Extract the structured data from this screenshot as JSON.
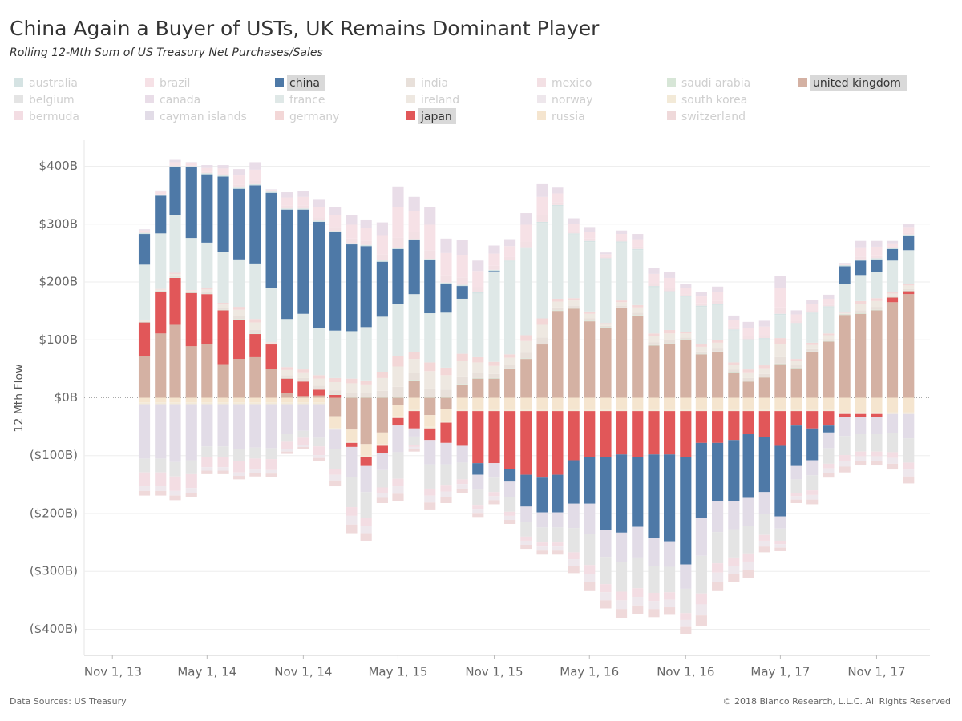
{
  "chart_data": {
    "type": "bar",
    "stacked": true,
    "title": "China Again a Buyer of USTs, UK Remains Dominant Player",
    "subtitle": "Rolling 12-Mth Sum of US Treasury Net Purchases/Sales",
    "y_label": "12 Mth Flow",
    "source": "Data Sources: US Treasury",
    "copyright": "© 2018 Bianco Research, L.L.C. All Rights Reserved",
    "x": [
      "2014-01-01",
      "2014-02-01",
      "2014-03-01",
      "2014-04-01",
      "2014-05-01",
      "2014-06-01",
      "2014-07-01",
      "2014-08-01",
      "2014-09-01",
      "2014-10-01",
      "2014-11-01",
      "2014-12-01",
      "2015-01-01",
      "2015-02-01",
      "2015-03-01",
      "2015-04-01",
      "2015-05-01",
      "2015-06-01",
      "2015-07-01",
      "2015-08-01",
      "2015-09-01",
      "2015-10-01",
      "2015-11-01",
      "2015-12-01",
      "2016-01-01",
      "2016-02-01",
      "2016-03-01",
      "2016-04-01",
      "2016-05-01",
      "2016-06-01",
      "2016-07-01",
      "2016-08-01",
      "2016-09-01",
      "2016-10-01",
      "2016-11-01",
      "2016-12-01",
      "2017-01-01",
      "2017-02-01",
      "2017-03-01",
      "2017-04-01",
      "2017-05-01",
      "2017-06-01",
      "2017-07-01",
      "2017-08-01",
      "2017-09-01",
      "2017-10-01",
      "2017-11-01",
      "2017-12-01",
      "2018-01-01"
    ],
    "xlim": [
      "2013-09-08",
      "2018-02-11"
    ],
    "xticks": [
      {
        "value": "2013-11-01",
        "label": "Nov 1, 13"
      },
      {
        "value": "2014-05-01",
        "label": "May 1, 14"
      },
      {
        "value": "2014-11-01",
        "label": "Nov 1, 14"
      },
      {
        "value": "2015-05-01",
        "label": "May 1, 15"
      },
      {
        "value": "2015-11-01",
        "label": "Nov 1, 15"
      },
      {
        "value": "2016-05-01",
        "label": "May 1, 16"
      },
      {
        "value": "2016-11-01",
        "label": "Nov 1, 16"
      },
      {
        "value": "2017-05-01",
        "label": "May 1, 17"
      },
      {
        "value": "2017-11-01",
        "label": "Nov 1, 17"
      }
    ],
    "ylim": [
      -445,
      445
    ],
    "yticks": [
      {
        "value": -400,
        "label": "($400B)"
      },
      {
        "value": -300,
        "label": "($300B)"
      },
      {
        "value": -200,
        "label": "($200B)"
      },
      {
        "value": -100,
        "label": "($100B)"
      },
      {
        "value": 0,
        "label": "$0B"
      },
      {
        "value": 100,
        "label": "$100B"
      },
      {
        "value": 200,
        "label": "$200B"
      },
      {
        "value": 300,
        "label": "$300B"
      },
      {
        "value": 400,
        "label": "$400B"
      }
    ],
    "grid": true,
    "stack_order": [
      18,
      14,
      16,
      11,
      15,
      9,
      10,
      8,
      7,
      6,
      0,
      12,
      3,
      4,
      5,
      1,
      2,
      13,
      17
    ],
    "series": [
      {
        "name": "australia",
        "color": "#d5e3e3",
        "highlighted": false,
        "values": [
          2,
          2,
          2,
          2,
          2,
          2,
          2,
          2,
          2,
          2,
          2,
          2,
          2,
          2,
          2,
          2,
          2,
          2,
          2,
          2,
          2,
          2,
          2,
          2,
          2,
          2,
          2,
          2,
          2,
          2,
          2,
          2,
          2,
          2,
          2,
          2,
          2,
          2,
          2,
          2,
          2,
          2,
          2,
          2,
          2,
          2,
          2,
          2,
          2
        ]
      },
      {
        "name": "belgium",
        "color": "#e4e4e4",
        "highlighted": false,
        "values": [
          -24,
          -24,
          -25,
          -24,
          -18,
          -18,
          -20,
          -19,
          -19,
          -13,
          -12,
          -15,
          -34,
          -52,
          -45,
          -30,
          -46,
          -14,
          -42,
          -37,
          -29,
          -26,
          -25,
          -26,
          -26,
          -26,
          -26,
          -42,
          -53,
          -47,
          -51,
          -53,
          -47,
          -44,
          -42,
          -65,
          -54,
          -49,
          -48,
          -37,
          -21,
          -23,
          -26,
          -27,
          -33,
          -30,
          -30,
          -33,
          -42
        ]
      },
      {
        "name": "bermuda",
        "color": "#f3dde3",
        "highlighted": false,
        "values": [
          -24,
          -24,
          -25,
          -24,
          -18,
          -18,
          -20,
          -19,
          -19,
          -13,
          -12,
          -15,
          -10,
          -15,
          -13,
          -9,
          -13,
          -4,
          -12,
          -10,
          -8,
          -7,
          -7,
          -7,
          -7,
          -7,
          -7,
          -12,
          -15,
          -14,
          -15,
          -15,
          -14,
          -13,
          -12,
          -19,
          -16,
          -14,
          -14,
          -10,
          -6,
          -6,
          -8,
          -8,
          -10,
          -8,
          -8,
          -10,
          -12
        ]
      },
      {
        "name": "brazil",
        "color": "#f6e1e6",
        "highlighted": false,
        "values": [
          3,
          4,
          5,
          4,
          7,
          9,
          16,
          19,
          2,
          14,
          15,
          18,
          20,
          24,
          22,
          33,
          53,
          37,
          44,
          38,
          39,
          28,
          21,
          19,
          29,
          32,
          15,
          13,
          12,
          5,
          10,
          13,
          16,
          17,
          10,
          12,
          15,
          12,
          15,
          15,
          33,
          11,
          11,
          10,
          2,
          16,
          15,
          6,
          10
        ]
      },
      {
        "name": "canada",
        "color": "#e9dde8",
        "highlighted": false,
        "values": [
          2,
          2,
          4,
          2,
          5,
          6,
          11,
          13,
          1,
          9,
          10,
          12,
          14,
          16,
          15,
          22,
          35,
          24,
          30,
          25,
          26,
          18,
          14,
          12,
          20,
          22,
          10,
          9,
          8,
          3,
          6,
          9,
          10,
          11,
          7,
          8,
          10,
          8,
          10,
          10,
          22,
          7,
          7,
          7,
          1,
          11,
          10,
          4,
          6
        ]
      },
      {
        "name": "cayman islands",
        "color": "#e2dce7",
        "highlighted": false,
        "values": [
          -94,
          -94,
          -100,
          -97,
          -73,
          -73,
          -78,
          -75,
          -76,
          -52,
          -46,
          -58,
          -34,
          -52,
          -45,
          -30,
          -46,
          -14,
          -42,
          -37,
          -29,
          -26,
          -25,
          -26,
          -26,
          -26,
          -26,
          -42,
          -53,
          -47,
          -51,
          -53,
          -47,
          -44,
          -42,
          -65,
          -54,
          -49,
          -48,
          -37,
          -21,
          -23,
          -26,
          -27,
          -33,
          -30,
          -30,
          -33,
          -42
        ]
      },
      {
        "name": "china",
        "color": "#4e79a7",
        "highlighted": true,
        "values": [
          53,
          65,
          83,
          122,
          118,
          130,
          122,
          135,
          165,
          189,
          180,
          183,
          170,
          150,
          140,
          95,
          95,
          93,
          92,
          50,
          22,
          -20,
          2,
          -22,
          -55,
          -60,
          -65,
          -75,
          -80,
          -125,
          -135,
          -120,
          -145,
          -150,
          -185,
          -130,
          -100,
          -105,
          -110,
          -95,
          -122,
          -70,
          -55,
          -12,
          30,
          25,
          22,
          20,
          25
        ]
      },
      {
        "name": "france",
        "color": "#dfe8e7",
        "highlighted": false,
        "values": [
          95,
          96,
          99,
          90,
          79,
          88,
          82,
          96,
          93,
          83,
          96,
          82,
          82,
          82,
          92,
          95,
          90,
          100,
          85,
          95,
          95,
          110,
          155,
          160,
          150,
          165,
          160,
          110,
          120,
          110,
          100,
          95,
          80,
          65,
          60,
          65,
          60,
          55,
          50,
          45,
          40,
          60,
          50,
          45,
          50,
          45,
          45,
          55,
          58
        ]
      },
      {
        "name": "germany",
        "color": "#f3d7d7",
        "highlighted": false,
        "values": [
          1,
          1,
          2,
          1,
          2,
          3,
          5,
          6,
          1,
          5,
          5,
          6,
          7,
          8,
          7,
          11,
          18,
          12,
          15,
          13,
          13,
          9,
          7,
          6,
          10,
          11,
          5,
          4,
          4,
          2,
          3,
          4,
          5,
          6,
          3,
          4,
          5,
          4,
          5,
          5,
          11,
          4,
          4,
          3,
          1,
          5,
          5,
          2,
          3
        ]
      },
      {
        "name": "india",
        "color": "#e8e0da",
        "highlighted": false,
        "values": [
          1,
          1,
          2,
          1,
          2,
          3,
          5,
          6,
          1,
          5,
          5,
          6,
          7,
          8,
          7,
          11,
          18,
          12,
          15,
          13,
          13,
          9,
          7,
          6,
          10,
          11,
          5,
          4,
          4,
          2,
          3,
          4,
          5,
          6,
          3,
          4,
          5,
          4,
          5,
          5,
          11,
          4,
          4,
          3,
          1,
          5,
          5,
          2,
          3
        ]
      },
      {
        "name": "ireland",
        "color": "#eee8e1",
        "highlighted": false,
        "values": [
          2,
          2,
          4,
          2,
          5,
          6,
          11,
          13,
          1,
          9,
          10,
          12,
          14,
          16,
          15,
          22,
          35,
          24,
          30,
          25,
          26,
          18,
          14,
          12,
          20,
          22,
          10,
          9,
          8,
          3,
          6,
          9,
          10,
          11,
          7,
          8,
          10,
          8,
          10,
          10,
          22,
          7,
          7,
          7,
          1,
          11,
          10,
          4,
          6
        ]
      },
      {
        "name": "japan",
        "color": "#e15759",
        "highlighted": true,
        "values": [
          58,
          72,
          81,
          92,
          86,
          93,
          68,
          40,
          42,
          25,
          25,
          10,
          5,
          -7,
          -15,
          -12,
          -13,
          -30,
          -20,
          -35,
          -60,
          -90,
          -90,
          -100,
          -110,
          -115,
          -110,
          -85,
          -80,
          -80,
          -75,
          -80,
          -75,
          -75,
          -80,
          -55,
          -55,
          -50,
          -40,
          -45,
          -60,
          -25,
          -30,
          -25,
          -5,
          -5,
          -5,
          8,
          5
        ]
      },
      {
        "name": "mexico",
        "color": "#f3e0e4",
        "highlighted": false,
        "values": [
          1,
          1,
          2,
          1,
          2,
          3,
          5,
          6,
          1,
          5,
          5,
          6,
          7,
          8,
          7,
          11,
          18,
          12,
          15,
          13,
          13,
          9,
          7,
          6,
          10,
          11,
          5,
          4,
          4,
          2,
          3,
          4,
          5,
          6,
          3,
          4,
          5,
          4,
          5,
          5,
          11,
          4,
          4,
          3,
          1,
          5,
          5,
          2,
          3
        ]
      },
      {
        "name": "norway",
        "color": "#eee7ec",
        "highlighted": false,
        "values": [
          -8,
          -8,
          -8,
          -8,
          -6,
          -6,
          -6,
          -6,
          -6,
          -4,
          -4,
          -5,
          -10,
          -15,
          -13,
          -9,
          -13,
          -4,
          -12,
          -10,
          -8,
          -7,
          -7,
          -7,
          -7,
          -7,
          -7,
          -12,
          -15,
          -14,
          -15,
          -15,
          -14,
          -13,
          -12,
          -19,
          -16,
          -14,
          -14,
          -10,
          -6,
          -6,
          -8,
          -8,
          -10,
          -8,
          -8,
          -10,
          -12
        ]
      },
      {
        "name": "russia",
        "color": "#f5e5cf",
        "highlighted": false,
        "values": [
          -8,
          -8,
          -8,
          -8,
          -8,
          -8,
          -8,
          -8,
          -8,
          -8,
          -8,
          -8,
          -20,
          -20,
          -20,
          -20,
          -20,
          -20,
          -20,
          -20,
          -20,
          -20,
          -20,
          -20,
          -20,
          -20,
          -20,
          -20,
          -20,
          -20,
          -20,
          -20,
          -20,
          -20,
          -20,
          -20,
          -20,
          -20,
          -20,
          -20,
          -20,
          -20,
          -20,
          -20,
          -25,
          -25,
          -25,
          -25,
          -25
        ]
      },
      {
        "name": "saudi arabia",
        "color": "#d7e6d7",
        "highlighted": false,
        "values": [
          1,
          1,
          1,
          1,
          1,
          1,
          1,
          1,
          1,
          1,
          1,
          1,
          1,
          1,
          1,
          1,
          1,
          1,
          1,
          1,
          1,
          1,
          1,
          1,
          1,
          1,
          1,
          1,
          1,
          1,
          1,
          1,
          1,
          1,
          1,
          1,
          1,
          1,
          1,
          1,
          1,
          1,
          1,
          1,
          1,
          1,
          1,
          1,
          1
        ]
      },
      {
        "name": "south korea",
        "color": "#f3ead8",
        "highlighted": false,
        "values": [
          -3,
          -3,
          -3,
          -3,
          -3,
          -3,
          -3,
          -3,
          -3,
          -3,
          -3,
          -3,
          -3,
          -3,
          -3,
          -3,
          -3,
          -3,
          -3,
          -3,
          -3,
          -3,
          -3,
          -3,
          -3,
          -3,
          -3,
          -3,
          -3,
          -3,
          -3,
          -3,
          -3,
          -3,
          -3,
          -3,
          -3,
          -3,
          -3,
          -3,
          -3,
          -3,
          -3,
          -3,
          -3,
          -3,
          -3,
          -3,
          -3
        ]
      },
      {
        "name": "switzerland",
        "color": "#efd9da",
        "highlighted": false,
        "values": [
          -8,
          -8,
          -8,
          -8,
          -6,
          -6,
          -6,
          -6,
          -6,
          -4,
          -4,
          -5,
          -10,
          -15,
          -13,
          -9,
          -13,
          -4,
          -12,
          -10,
          -8,
          -7,
          -7,
          -7,
          -7,
          -7,
          -7,
          -12,
          -15,
          -14,
          -15,
          -15,
          -14,
          -13,
          -12,
          -19,
          -16,
          -14,
          -14,
          -10,
          -6,
          -6,
          -8,
          -8,
          -10,
          -8,
          -8,
          -10,
          -12
        ]
      },
      {
        "name": "united kingdom",
        "color": "#d4b1a3",
        "highlighted": true,
        "values": [
          72,
          111,
          126,
          89,
          93,
          58,
          67,
          70,
          50,
          8,
          3,
          4,
          -32,
          -55,
          -80,
          -60,
          -12,
          30,
          -30,
          -20,
          23,
          33,
          33,
          50,
          67,
          92,
          150,
          154,
          132,
          121,
          155,
          142,
          90,
          93,
          100,
          75,
          79,
          44,
          28,
          35,
          58,
          51,
          79,
          97,
          143,
          145,
          151,
          165,
          179
        ]
      }
    ]
  }
}
